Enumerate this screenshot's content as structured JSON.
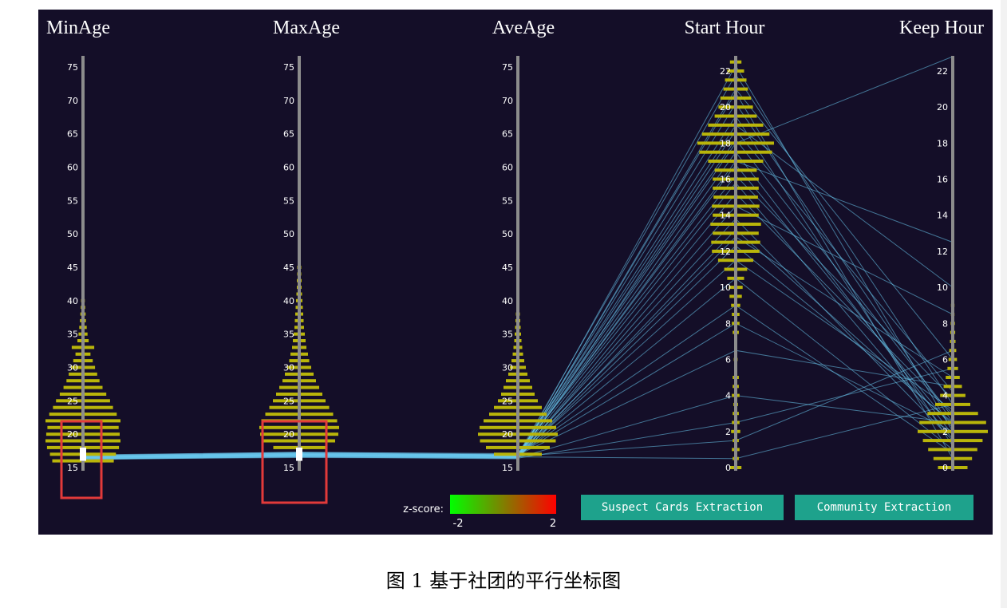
{
  "chart_data": {
    "type": "parallel-coordinates",
    "axes": [
      {
        "title": "MinAge",
        "ticks": [
          "15",
          "20",
          "25",
          "30",
          "35",
          "40",
          "45",
          "50",
          "55",
          "60",
          "65",
          "70",
          "75"
        ],
        "range": [
          15,
          75
        ],
        "hist": [
          [
            16,
            0.82
          ],
          [
            17,
            0.88
          ],
          [
            18,
            0.96
          ],
          [
            19,
            1.0
          ],
          [
            20,
            0.98
          ],
          [
            21,
            0.95
          ],
          [
            22,
            1.0
          ],
          [
            23,
            0.9
          ],
          [
            24,
            0.8
          ],
          [
            25,
            0.72
          ],
          [
            26,
            0.62
          ],
          [
            27,
            0.52
          ],
          [
            28,
            0.44
          ],
          [
            29,
            0.38
          ],
          [
            30,
            0.32
          ],
          [
            31,
            0.26
          ],
          [
            32,
            0.2
          ],
          [
            33,
            0.3
          ],
          [
            34,
            0.15
          ],
          [
            35,
            0.12
          ],
          [
            36,
            0.1
          ],
          [
            37,
            0.08
          ],
          [
            38,
            0.07
          ],
          [
            39,
            0.06
          ],
          [
            40,
            0.05
          ],
          [
            41,
            0.04
          ],
          [
            42,
            0.03
          ],
          [
            43,
            0.03
          ],
          [
            44,
            0.02
          ]
        ],
        "selection": [
          16,
          18
        ]
      },
      {
        "title": "MaxAge",
        "ticks": [
          "15",
          "20",
          "25",
          "30",
          "35",
          "40",
          "45",
          "50",
          "55",
          "60",
          "65",
          "70",
          "75"
        ],
        "range": [
          15,
          75
        ],
        "hist": [
          [
            18,
            0.65
          ],
          [
            19,
            0.9
          ],
          [
            20,
            0.98
          ],
          [
            21,
            1.0
          ],
          [
            22,
            0.95
          ],
          [
            23,
            0.85
          ],
          [
            24,
            0.75
          ],
          [
            25,
            0.66
          ],
          [
            26,
            0.58
          ],
          [
            27,
            0.5
          ],
          [
            28,
            0.42
          ],
          [
            29,
            0.36
          ],
          [
            30,
            0.3
          ],
          [
            31,
            0.25
          ],
          [
            32,
            0.22
          ],
          [
            33,
            0.18
          ],
          [
            34,
            0.16
          ],
          [
            35,
            0.14
          ],
          [
            36,
            0.12
          ],
          [
            37,
            0.11
          ],
          [
            38,
            0.1
          ],
          [
            39,
            0.09
          ],
          [
            40,
            0.08
          ],
          [
            41,
            0.07
          ],
          [
            42,
            0.06
          ],
          [
            43,
            0.06
          ],
          [
            44,
            0.05
          ],
          [
            45,
            0.05
          ],
          [
            46,
            0.04
          ],
          [
            47,
            0.04
          ],
          [
            48,
            0.03
          ],
          [
            49,
            0.03
          ],
          [
            50,
            0.03
          ],
          [
            51,
            0.02
          ],
          [
            52,
            0.02
          ],
          [
            53,
            0.02
          ],
          [
            55,
            0.02
          ],
          [
            58,
            0.02
          ],
          [
            60,
            0.02
          ],
          [
            62,
            0.02
          ]
        ],
        "selection": [
          16,
          18
        ]
      },
      {
        "title": "AveAge",
        "ticks": [
          "15",
          "20",
          "25",
          "30",
          "35",
          "40",
          "45",
          "50",
          "55",
          "60",
          "65",
          "70",
          "75"
        ],
        "range": [
          15,
          75
        ],
        "hist": [
          [
            17,
            0.6
          ],
          [
            18,
            0.8
          ],
          [
            19,
            0.95
          ],
          [
            20,
            1.0
          ],
          [
            21,
            0.96
          ],
          [
            22,
            0.86
          ],
          [
            23,
            0.72
          ],
          [
            24,
            0.6
          ],
          [
            25,
            0.5
          ],
          [
            26,
            0.42
          ],
          [
            27,
            0.36
          ],
          [
            28,
            0.3
          ],
          [
            29,
            0.24
          ],
          [
            30,
            0.2
          ],
          [
            31,
            0.16
          ],
          [
            32,
            0.13
          ],
          [
            33,
            0.11
          ],
          [
            34,
            0.09
          ],
          [
            35,
            0.08
          ],
          [
            36,
            0.07
          ],
          [
            37,
            0.06
          ],
          [
            38,
            0.05
          ],
          [
            39,
            0.04
          ],
          [
            40,
            0.04
          ],
          [
            41,
            0.03
          ],
          [
            42,
            0.03
          ],
          [
            43,
            0.02
          ],
          [
            44,
            0.02
          ],
          [
            45,
            0.02
          ],
          [
            46,
            0.02
          ]
        ],
        "selection": null
      },
      {
        "title": "Start Hour",
        "ticks": [
          "0",
          "2",
          "4",
          "6",
          "8",
          "10",
          "12",
          "14",
          "16",
          "18",
          "20",
          "22"
        ],
        "range": [
          0,
          22.6
        ],
        "hist": [
          [
            0,
            0.15
          ],
          [
            0.5,
            0.08
          ],
          [
            1,
            0.1
          ],
          [
            1.5,
            0.08
          ],
          [
            2,
            0.12
          ],
          [
            2.5,
            0.1
          ],
          [
            3,
            0.08
          ],
          [
            3.5,
            0.06
          ],
          [
            4,
            0.1
          ],
          [
            4.5,
            0.08
          ],
          [
            5,
            0.08
          ],
          [
            6,
            0.05
          ],
          [
            7.5,
            0.08
          ],
          [
            8,
            0.1
          ],
          [
            8.5,
            0.1
          ],
          [
            9,
            0.12
          ],
          [
            9.5,
            0.16
          ],
          [
            10,
            0.18
          ],
          [
            10.5,
            0.22
          ],
          [
            11,
            0.3
          ],
          [
            11.5,
            0.46
          ],
          [
            12,
            0.62
          ],
          [
            12.5,
            0.64
          ],
          [
            13,
            0.6
          ],
          [
            13.5,
            0.66
          ],
          [
            14,
            0.6
          ],
          [
            14.5,
            0.62
          ],
          [
            15,
            0.58
          ],
          [
            15.5,
            0.6
          ],
          [
            16,
            0.6
          ],
          [
            16.5,
            0.55
          ],
          [
            17,
            0.72
          ],
          [
            17.5,
            0.95
          ],
          [
            18,
            1.0
          ],
          [
            18.5,
            0.88
          ],
          [
            19,
            0.72
          ],
          [
            19.5,
            0.55
          ],
          [
            20,
            0.45
          ],
          [
            20.5,
            0.4
          ],
          [
            21,
            0.32
          ],
          [
            21.5,
            0.28
          ],
          [
            22,
            0.22
          ],
          [
            22.5,
            0.15
          ]
        ],
        "selection": null
      },
      {
        "title": "Keep Hour",
        "ticks": [
          "0",
          "2",
          "4",
          "6",
          "8",
          "10",
          "12",
          "14",
          "16",
          "18",
          "20",
          "22"
        ],
        "range": [
          0,
          22.6
        ],
        "hist": [
          [
            0,
            0.42
          ],
          [
            0.5,
            0.55
          ],
          [
            1,
            0.7
          ],
          [
            1.5,
            0.85
          ],
          [
            2,
            1.0
          ],
          [
            2.5,
            0.95
          ],
          [
            3,
            0.72
          ],
          [
            3.5,
            0.5
          ],
          [
            4,
            0.36
          ],
          [
            4.5,
            0.26
          ],
          [
            5,
            0.2
          ],
          [
            5.5,
            0.15
          ],
          [
            6,
            0.12
          ],
          [
            6.5,
            0.1
          ],
          [
            7,
            0.08
          ],
          [
            7.5,
            0.07
          ],
          [
            8,
            0.06
          ],
          [
            8.5,
            0.05
          ],
          [
            9,
            0.05
          ],
          [
            9.5,
            0.04
          ],
          [
            10,
            0.04
          ],
          [
            11,
            0.03
          ],
          [
            12,
            0.03
          ]
        ],
        "selection": null
      }
    ],
    "series": [
      {
        "values": [
          16.5,
          16.8,
          16.6,
          0.5,
          3.5
        ]
      },
      {
        "values": [
          16.2,
          16.9,
          16.4,
          2.5,
          5.5
        ]
      },
      {
        "values": [
          16.8,
          17.2,
          16.9,
          8.0,
          2.0
        ]
      },
      {
        "values": [
          16.4,
          16.7,
          16.6,
          12.3,
          2.5
        ]
      },
      {
        "values": [
          16.7,
          17.0,
          16.8,
          13.8,
          1.5
        ]
      },
      {
        "values": [
          16.3,
          16.5,
          16.4,
          15.2,
          3.0
        ]
      },
      {
        "values": [
          16.6,
          17.1,
          16.8,
          16.8,
          2.2
        ]
      },
      {
        "values": [
          16.5,
          16.8,
          16.6,
          17.5,
          1.8
        ]
      },
      {
        "values": [
          16.9,
          17.3,
          17.1,
          18.2,
          2.8
        ]
      },
      {
        "values": [
          16.2,
          16.6,
          16.3,
          18.7,
          4.2
        ]
      },
      {
        "values": [
          16.5,
          17.0,
          16.7,
          19.5,
          1.2
        ]
      },
      {
        "values": [
          16.7,
          16.9,
          16.8,
          20.2,
          2.5
        ]
      },
      {
        "values": [
          16.4,
          16.8,
          16.5,
          21.0,
          6.0
        ]
      },
      {
        "values": [
          16.6,
          17.2,
          16.9,
          21.8,
          3.5
        ]
      },
      {
        "values": [
          16.3,
          16.7,
          16.5,
          22.3,
          2.0
        ]
      },
      {
        "values": [
          16.8,
          17.1,
          16.9,
          19.0,
          10.0
        ]
      },
      {
        "values": [
          16.5,
          16.9,
          16.7,
          17.0,
          12.5
        ]
      },
      {
        "values": [
          16.4,
          16.6,
          16.5,
          14.5,
          8.5
        ]
      },
      {
        "values": [
          16.6,
          17.0,
          16.8,
          12.8,
          5.0
        ]
      },
      {
        "values": [
          16.5,
          16.8,
          16.7,
          10.5,
          1.0
        ]
      },
      {
        "values": [
          16.7,
          17.1,
          16.9,
          6.5,
          4.5
        ]
      },
      {
        "values": [
          16.3,
          16.7,
          16.5,
          4.0,
          2.5
        ]
      },
      {
        "values": [
          16.6,
          16.9,
          16.7,
          1.5,
          6.5
        ]
      },
      {
        "values": [
          16.5,
          17.0,
          16.8,
          18.0,
          22.8
        ]
      },
      {
        "values": [
          16.4,
          16.8,
          16.6,
          20.8,
          0.5
        ]
      },
      {
        "values": [
          16.8,
          17.3,
          17.0,
          16.2,
          3.8
        ]
      },
      {
        "values": [
          16.5,
          16.9,
          16.7,
          15.8,
          1.6
        ]
      },
      {
        "values": [
          16.3,
          16.6,
          16.4,
          13.2,
          2.4
        ]
      },
      {
        "values": [
          16.6,
          17.0,
          16.8,
          11.5,
          3.2
        ]
      },
      {
        "values": [
          16.7,
          17.2,
          16.9,
          9.0,
          0.8
        ]
      }
    ],
    "colors": {
      "bar": "#b9b50a",
      "axis": "#8c8c8c",
      "line": "#6ac9ee",
      "selection": "#ffffff",
      "highlight_box": "#e23a3a",
      "background": "#140e28"
    }
  },
  "legend": {
    "label": "z-score:",
    "min": "-2",
    "max": "2",
    "colors": [
      "#00ff00",
      "#ff0000"
    ]
  },
  "buttons": {
    "suspect": "Suspect Cards Extraction",
    "community": "Community Extraction"
  },
  "caption": "图 1 基于社团的平行坐标图"
}
